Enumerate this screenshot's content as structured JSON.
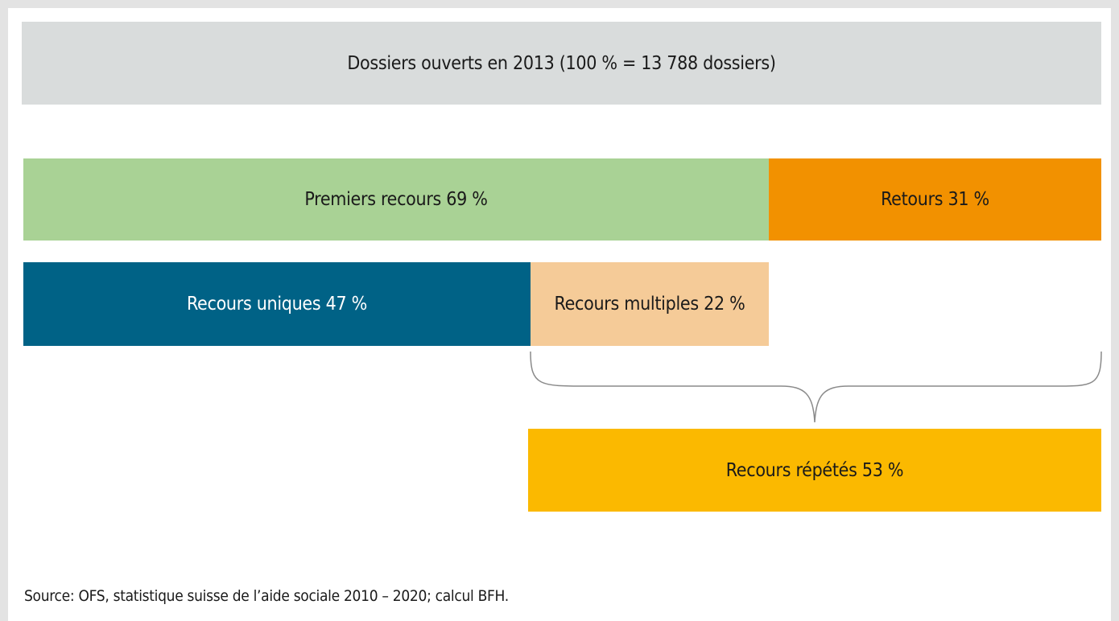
{
  "header": {
    "title": "Dossiers ouverts en 2013 (100 % = 13 788 dossiers)"
  },
  "boxes": {
    "first": "Premiers recours 69 %",
    "returns": "Retours 31 %",
    "unique": "Recours uniques 47 %",
    "multiple": "Recours multiples 22 %",
    "repeated": "Recours répétés 53 %"
  },
  "source": "Source: OFS, statistique suisse de l’aide sociale 2010 – 2020; calcul BFH."
}
